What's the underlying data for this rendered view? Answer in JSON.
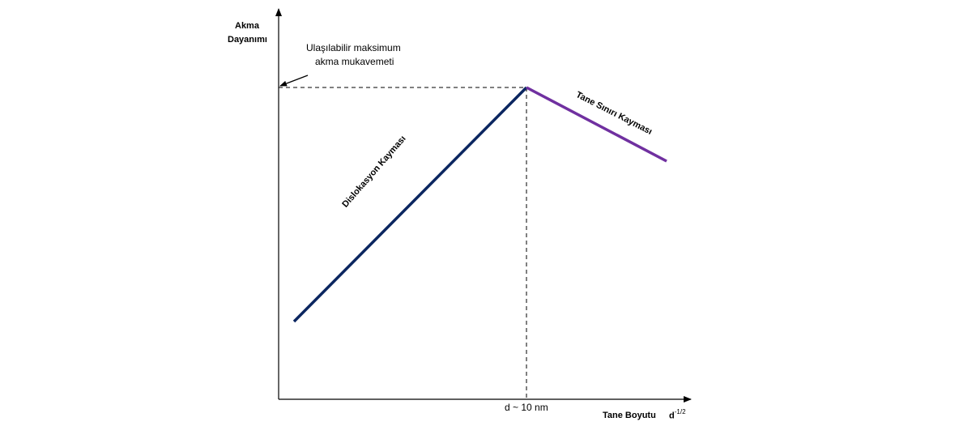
{
  "y_axis": {
    "label_line1": "Akma",
    "label_line2": "Dayanımı"
  },
  "x_axis": {
    "label": "Tane Boyutu",
    "unit_base": "d",
    "unit_exp": "-1/2",
    "tick_label": "d ~ 10 nm"
  },
  "annotation": {
    "line1": "Ulaşılabilir maksimum",
    "line2": "akma mukavemeti"
  },
  "lines": {
    "dislocation": {
      "label": "Dislokasyon Kayması",
      "color": "#0b2660"
    },
    "grain_boundary": {
      "label": "Tane Sınırı Kayması",
      "color": "#7030a0"
    }
  },
  "colors": {
    "axis": "#000000",
    "guide": "#000000"
  }
}
